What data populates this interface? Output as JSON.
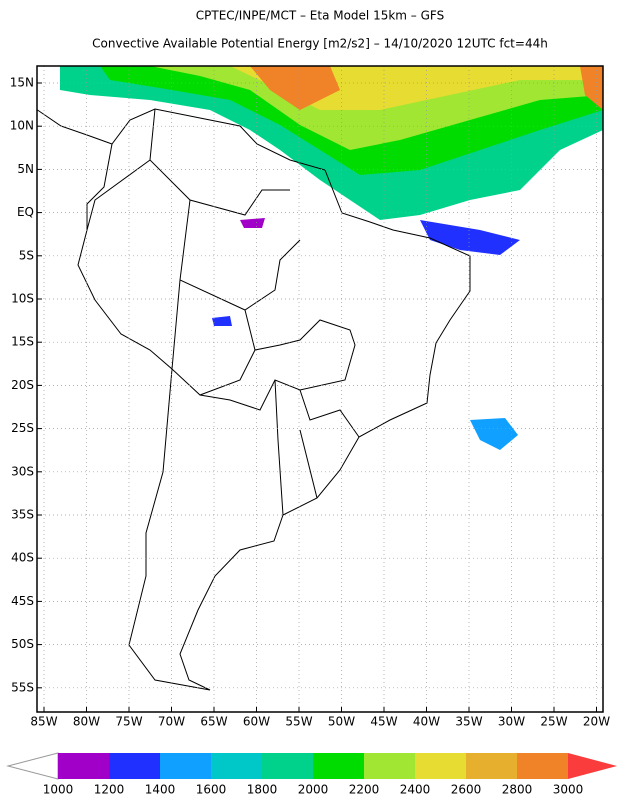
{
  "header": {
    "line1": "CPTEC/INPE/MCT –  Eta Model 15km – GFS",
    "line2": "Convective Available Potential Energy [m2/s2] – 14/10/2020 12UTC fct=44h"
  },
  "map": {
    "lon_labels": [
      "85W",
      "80W",
      "75W",
      "70W",
      "65W",
      "60W",
      "55W",
      "50W",
      "45W",
      "40W",
      "35W",
      "30W",
      "25W",
      "20W"
    ],
    "lat_labels": [
      "15N",
      "10N",
      "5N",
      "EQ",
      "5S",
      "10S",
      "15S",
      "20S",
      "25S",
      "30S",
      "35S",
      "40S",
      "45S",
      "50S",
      "55S"
    ]
  },
  "colorbar": {
    "levels": [
      1000,
      1200,
      1400,
      1600,
      1800,
      2000,
      2200,
      2400,
      2600,
      2800,
      3000
    ],
    "colors": [
      "#a000c8",
      "#2030ff",
      "#10a0ff",
      "#00c8c8",
      "#00d28c",
      "#00dc00",
      "#a0e632",
      "#e6dc32",
      "#e6af2d",
      "#f08228",
      "#fa3c3c"
    ]
  }
}
